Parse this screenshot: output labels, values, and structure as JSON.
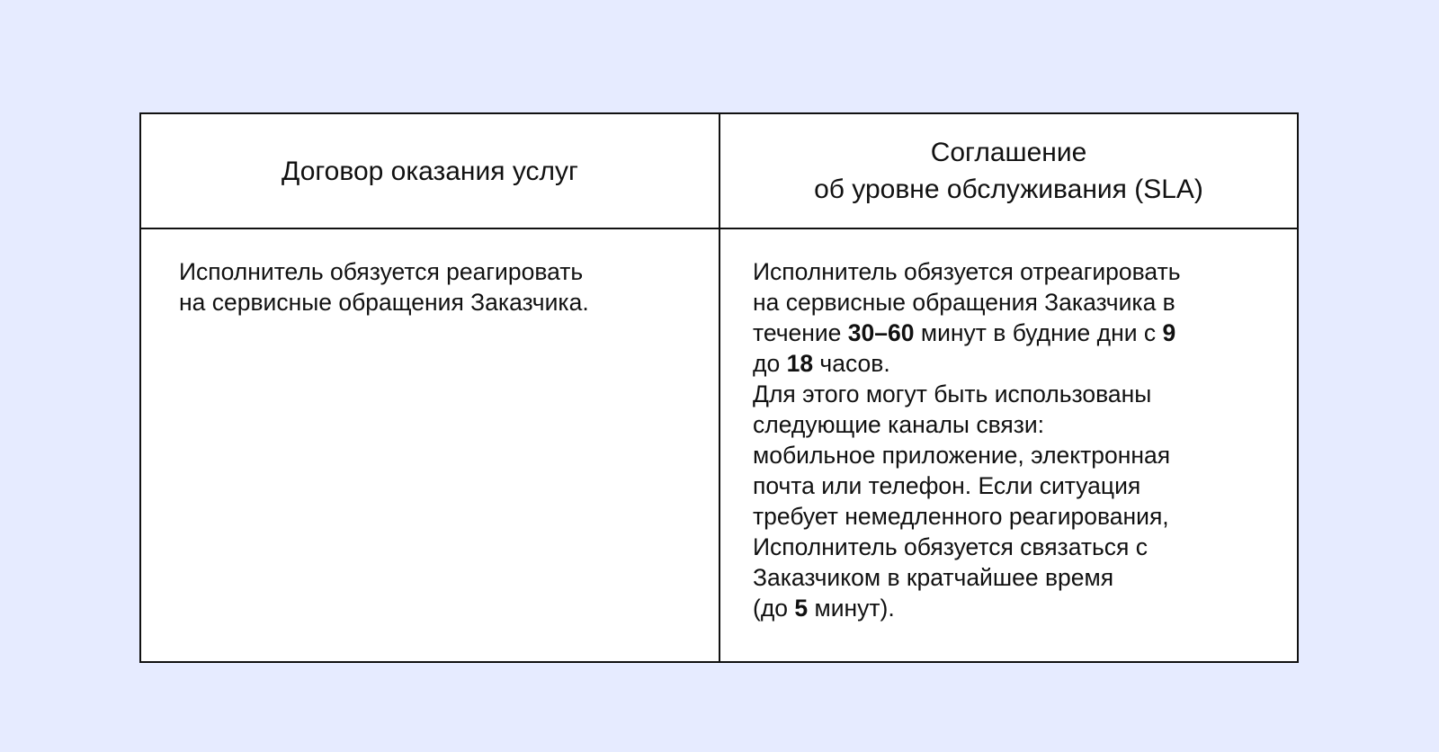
{
  "table": {
    "headers": [
      "Договор оказания услуг",
      [
        "Соглашение",
        "об уровне обслуживания (SLA)"
      ]
    ],
    "col1_lines": [
      "Исполнитель обязуется реагировать",
      "на сервисные обращения Заказчика."
    ],
    "col2_lines": [
      [
        {
          "t": "Исполнитель обязуется отреагировать"
        }
      ],
      [
        {
          "t": "на сервисные обращения Заказчика в"
        }
      ],
      [
        {
          "t": "течение "
        },
        {
          "t": "30–60",
          "b": true
        },
        {
          "t": " минут в будние дни с "
        },
        {
          "t": "9",
          "b": true
        }
      ],
      [
        {
          "t": "до "
        },
        {
          "t": "18",
          "b": true
        },
        {
          "t": " часов."
        }
      ],
      [
        {
          "t": "Для этого могут быть использованы"
        }
      ],
      [
        {
          "t": "следующие каналы связи:"
        }
      ],
      [
        {
          "t": "мобильное приложение, электронная"
        }
      ],
      [
        {
          "t": "почта или телефон. Если ситуация"
        }
      ],
      [
        {
          "t": "требует немедленного реагирования,"
        }
      ],
      [
        {
          "t": "Исполнитель обязуется связаться с"
        }
      ],
      [
        {
          "t": "Заказчиком в кратчайшее время"
        }
      ],
      [
        {
          "t": "("
        },
        {
          "t": "до "
        },
        {
          "t": "5",
          "b": true
        },
        {
          "t": " минут)."
        }
      ]
    ]
  }
}
